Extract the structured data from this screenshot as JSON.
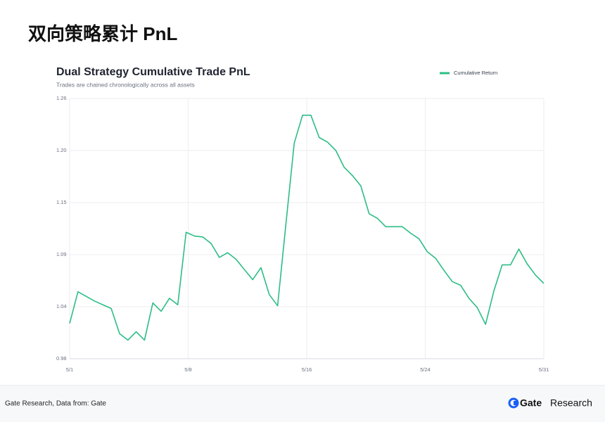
{
  "header": {
    "title": "双向策略累计 PnL"
  },
  "chart_data": {
    "type": "line",
    "title": "Dual Strategy Cumulative Trade PnL",
    "subtitle": "Trades are chained chronologically across all assets",
    "legend": "top-right",
    "grid": true,
    "series": [
      {
        "name": "Cumulative Return",
        "color": "#2dbd85",
        "values": [
          1.018,
          1.052,
          1.047,
          1.042,
          1.038,
          1.034,
          1.007,
          1.0,
          1.009,
          1.0,
          1.04,
          1.031,
          1.045,
          1.038,
          1.116,
          1.112,
          1.111,
          1.104,
          1.089,
          1.094,
          1.087,
          1.076,
          1.065,
          1.078,
          1.049,
          1.037,
          1.125,
          1.212,
          1.242,
          1.242,
          1.218,
          1.213,
          1.204,
          1.186,
          1.177,
          1.166,
          1.136,
          1.131,
          1.122,
          1.122,
          1.122,
          1.115,
          1.109,
          1.095,
          1.088,
          1.075,
          1.063,
          1.059,
          1.045,
          1.035,
          1.017,
          1.053,
          1.081,
          1.081,
          1.098,
          1.082,
          1.07,
          1.061
        ]
      }
    ],
    "xlim": [
      0,
      57
    ],
    "xticks": [
      {
        "value": 0,
        "label": "5/1"
      },
      {
        "value": 14.25,
        "label": "5/8"
      },
      {
        "value": 28.5,
        "label": "5/16"
      },
      {
        "value": 42.75,
        "label": "5/24"
      },
      {
        "value": 57,
        "label": "5/31"
      }
    ],
    "ylim": [
      0.98,
      1.26
    ],
    "yticks": [
      0.98,
      {
        "value": 1.036,
        "label": "1.04"
      },
      {
        "value": 1.092,
        "label": "1.09"
      },
      {
        "value": 1.148,
        "label": "1.15"
      },
      {
        "value": 1.204,
        "label": "1.20"
      },
      1.26
    ]
  },
  "footer": {
    "source": "Gate Research, Data from: Gate",
    "brand": "Gate",
    "brand_suffix": "Research"
  }
}
